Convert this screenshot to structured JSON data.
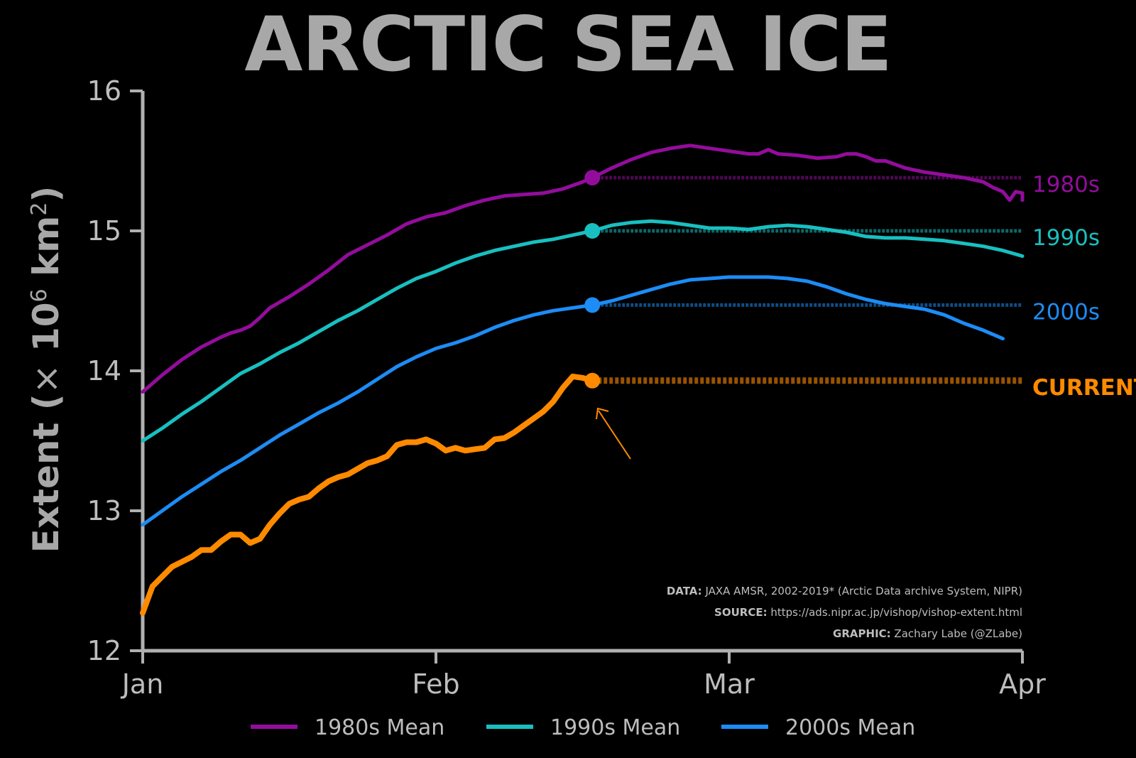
{
  "title": "ARCTIC SEA ICE",
  "chart_data": {
    "type": "line",
    "ylabel": "Extent (× 10^6 km^2)",
    "ylabel_parts": {
      "pre": "Extent (",
      "times": "×",
      "base": " 10",
      "exp1": "6",
      "unit": " km",
      "exp2": "2",
      "post": ")"
    },
    "ylim": [
      12,
      16
    ],
    "yticks": [
      "12",
      "13",
      "14",
      "15",
      "16"
    ],
    "xlim": [
      0,
      90
    ],
    "xticks": [
      {
        "label": "Jan",
        "x": 0
      },
      {
        "label": "Feb",
        "x": 30
      },
      {
        "label": "Mar",
        "x": 60
      },
      {
        "label": "Apr",
        "x": 90
      }
    ],
    "grid": false,
    "legend_position": "bottom",
    "current_day": 46,
    "series": [
      {
        "name": "1980s Mean",
        "end_label": "1980s",
        "color": "#930d9c",
        "marker_value": 15.38,
        "points": [
          [
            0,
            13.85
          ],
          [
            2,
            13.97
          ],
          [
            4,
            14.08
          ],
          [
            6,
            14.17
          ],
          [
            8,
            14.24
          ],
          [
            9,
            14.27
          ],
          [
            10,
            14.29
          ],
          [
            11,
            14.32
          ],
          [
            12,
            14.38
          ],
          [
            13,
            14.45
          ],
          [
            15,
            14.53
          ],
          [
            17,
            14.62
          ],
          [
            19,
            14.72
          ],
          [
            21,
            14.83
          ],
          [
            23,
            14.9
          ],
          [
            25,
            14.97
          ],
          [
            27,
            15.05
          ],
          [
            29,
            15.1
          ],
          [
            31,
            15.13
          ],
          [
            33,
            15.18
          ],
          [
            35,
            15.22
          ],
          [
            37,
            15.25
          ],
          [
            39,
            15.26
          ],
          [
            41,
            15.27
          ],
          [
            43,
            15.3
          ],
          [
            45,
            15.35
          ],
          [
            46,
            15.38
          ],
          [
            48,
            15.45
          ],
          [
            50,
            15.51
          ],
          [
            52,
            15.56
          ],
          [
            54,
            15.59
          ],
          [
            56,
            15.61
          ],
          [
            58,
            15.59
          ],
          [
            60,
            15.57
          ],
          [
            62,
            15.55
          ],
          [
            63,
            15.55
          ],
          [
            64,
            15.58
          ],
          [
            65,
            15.55
          ],
          [
            67,
            15.54
          ],
          [
            69,
            15.52
          ],
          [
            71,
            15.53
          ],
          [
            72,
            15.55
          ],
          [
            73,
            15.55
          ],
          [
            74,
            15.53
          ],
          [
            75,
            15.5
          ],
          [
            76,
            15.5
          ],
          [
            78,
            15.45
          ],
          [
            80,
            15.42
          ],
          [
            82,
            15.4
          ],
          [
            84,
            15.38
          ],
          [
            86,
            15.35
          ],
          [
            87,
            15.31
          ],
          [
            88,
            15.28
          ],
          [
            88.7,
            15.22
          ],
          [
            89.3,
            15.28
          ],
          [
            90,
            15.27
          ],
          [
            91,
            15.25
          ],
          [
            93,
            15.22
          ]
        ]
      },
      {
        "name": "1990s Mean",
        "end_label": "1990s",
        "color": "#19bfc0",
        "marker_value": 15.0,
        "points": [
          [
            0,
            13.5
          ],
          [
            2,
            13.59
          ],
          [
            4,
            13.69
          ],
          [
            6,
            13.78
          ],
          [
            8,
            13.88
          ],
          [
            10,
            13.98
          ],
          [
            12,
            14.05
          ],
          [
            14,
            14.13
          ],
          [
            16,
            14.2
          ],
          [
            18,
            14.28
          ],
          [
            20,
            14.36
          ],
          [
            22,
            14.43
          ],
          [
            24,
            14.51
          ],
          [
            26,
            14.59
          ],
          [
            28,
            14.66
          ],
          [
            30,
            14.71
          ],
          [
            32,
            14.77
          ],
          [
            34,
            14.82
          ],
          [
            36,
            14.86
          ],
          [
            38,
            14.89
          ],
          [
            40,
            14.92
          ],
          [
            42,
            14.94
          ],
          [
            44,
            14.97
          ],
          [
            46,
            15.0
          ],
          [
            48,
            15.04
          ],
          [
            50,
            15.06
          ],
          [
            52,
            15.07
          ],
          [
            54,
            15.06
          ],
          [
            56,
            15.04
          ],
          [
            58,
            15.02
          ],
          [
            60,
            15.02
          ],
          [
            62,
            15.01
          ],
          [
            64,
            15.03
          ],
          [
            66,
            15.04
          ],
          [
            68,
            15.03
          ],
          [
            70,
            15.01
          ],
          [
            72,
            14.99
          ],
          [
            74,
            14.96
          ],
          [
            76,
            14.95
          ],
          [
            78,
            14.95
          ],
          [
            80,
            14.94
          ],
          [
            82,
            14.93
          ],
          [
            84,
            14.91
          ],
          [
            86,
            14.89
          ],
          [
            88,
            14.86
          ],
          [
            90,
            14.82
          ]
        ]
      },
      {
        "name": "2000s Mean",
        "end_label": "2000s",
        "color": "#1d8cf5",
        "marker_value": 14.47,
        "points": [
          [
            0,
            12.9
          ],
          [
            2,
            13.0
          ],
          [
            4,
            13.1
          ],
          [
            6,
            13.19
          ],
          [
            8,
            13.28
          ],
          [
            10,
            13.36
          ],
          [
            12,
            13.45
          ],
          [
            14,
            13.54
          ],
          [
            16,
            13.62
          ],
          [
            18,
            13.7
          ],
          [
            20,
            13.77
          ],
          [
            22,
            13.85
          ],
          [
            24,
            13.94
          ],
          [
            26,
            14.03
          ],
          [
            28,
            14.1
          ],
          [
            30,
            14.16
          ],
          [
            32,
            14.2
          ],
          [
            34,
            14.25
          ],
          [
            36,
            14.31
          ],
          [
            38,
            14.36
          ],
          [
            40,
            14.4
          ],
          [
            42,
            14.43
          ],
          [
            44,
            14.45
          ],
          [
            46,
            14.47
          ],
          [
            48,
            14.5
          ],
          [
            50,
            14.54
          ],
          [
            52,
            14.58
          ],
          [
            54,
            14.62
          ],
          [
            56,
            14.65
          ],
          [
            58,
            14.66
          ],
          [
            60,
            14.67
          ],
          [
            62,
            14.67
          ],
          [
            64,
            14.67
          ],
          [
            66,
            14.66
          ],
          [
            68,
            14.64
          ],
          [
            70,
            14.6
          ],
          [
            72,
            14.55
          ],
          [
            74,
            14.51
          ],
          [
            76,
            14.48
          ],
          [
            78,
            14.46
          ],
          [
            80,
            14.44
          ],
          [
            82,
            14.4
          ],
          [
            84,
            14.34
          ],
          [
            86,
            14.29
          ],
          [
            88,
            14.23
          ]
        ]
      },
      {
        "name": "CURRENT",
        "end_label": "CURRENT",
        "color": "#ff8a00",
        "marker_value": 13.93,
        "points": [
          [
            0,
            12.27
          ],
          [
            1,
            12.46
          ],
          [
            2,
            12.53
          ],
          [
            3,
            12.6
          ],
          [
            5,
            12.67
          ],
          [
            6,
            12.72
          ],
          [
            7,
            12.72
          ],
          [
            8,
            12.78
          ],
          [
            9,
            12.83
          ],
          [
            10,
            12.83
          ],
          [
            11,
            12.77
          ],
          [
            12,
            12.8
          ],
          [
            13,
            12.9
          ],
          [
            14,
            12.98
          ],
          [
            15,
            13.05
          ],
          [
            16,
            13.08
          ],
          [
            17,
            13.1
          ],
          [
            18,
            13.16
          ],
          [
            19,
            13.21
          ],
          [
            20,
            13.24
          ],
          [
            21,
            13.26
          ],
          [
            22,
            13.3
          ],
          [
            23,
            13.34
          ],
          [
            24,
            13.36
          ],
          [
            25,
            13.39
          ],
          [
            26,
            13.47
          ],
          [
            27,
            13.49
          ],
          [
            28,
            13.49
          ],
          [
            29,
            13.51
          ],
          [
            30,
            13.48
          ],
          [
            31,
            13.43
          ],
          [
            32,
            13.45
          ],
          [
            33,
            13.43
          ],
          [
            34,
            13.44
          ],
          [
            35,
            13.45
          ],
          [
            36,
            13.51
          ],
          [
            37,
            13.52
          ],
          [
            38,
            13.56
          ],
          [
            39,
            13.61
          ],
          [
            40,
            13.66
          ],
          [
            41,
            13.71
          ],
          [
            42,
            13.78
          ],
          [
            43,
            13.88
          ],
          [
            44,
            13.96
          ],
          [
            45,
            13.95
          ],
          [
            46,
            13.93
          ]
        ]
      }
    ],
    "legend": [
      "1980s Mean",
      "1990s Mean",
      "2000s Mean"
    ]
  },
  "credits": {
    "data_key": "DATA:",
    "data_val": " JAXA AMSR, 2002-2019* (Arctic Data archive System, NIPR)",
    "source_key": "SOURCE:",
    "source_val": " https://ads.nipr.ac.jp/vishop/vishop-extent.html",
    "graphic_key": "GRAPHIC:",
    "graphic_val": " Zachary Labe (@ZLabe)"
  }
}
